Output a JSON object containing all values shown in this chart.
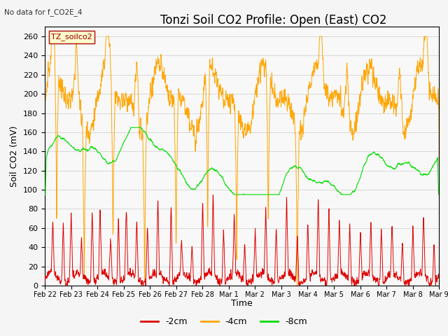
{
  "title": "Tonzi Soil CO2 Profile: Open (East) CO2",
  "subtitle": "No data for f_CO2E_4",
  "ylabel": "Soil CO2 (mV)",
  "xlabel": "Time",
  "legend_label": "TZ_soilco2",
  "ylim": [
    0,
    270
  ],
  "yticks": [
    0,
    20,
    40,
    60,
    80,
    100,
    120,
    140,
    160,
    180,
    200,
    220,
    240,
    260
  ],
  "line_labels": [
    "-2cm",
    "-4cm",
    "-8cm"
  ],
  "line_colors": [
    "#dd0000",
    "#ffa500",
    "#00dd00"
  ],
  "plot_bg": "#f5f5f5",
  "grid_color": "#d8d8d8",
  "title_fontsize": 12,
  "axis_fontsize": 9,
  "tick_fontsize": 8
}
